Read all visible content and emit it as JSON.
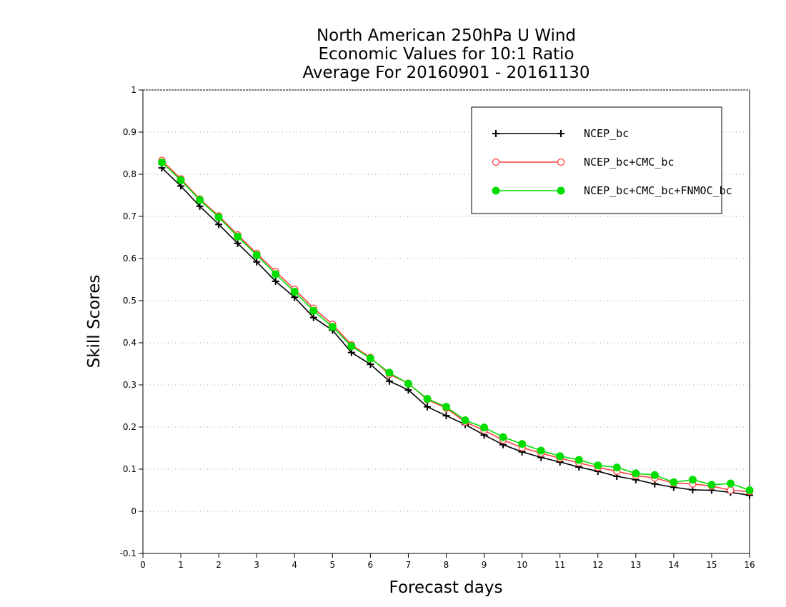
{
  "chart_data": {
    "type": "line",
    "title": [
      "North American 250hPa U Wind",
      "Economic Values for 10:1 Ratio",
      "Average For 20160901 - 20161130"
    ],
    "xlabel": "Forecast days",
    "ylabel": "Skill Scores",
    "xlim": [
      0,
      16
    ],
    "ylim": [
      -0.1,
      1
    ],
    "xticks": [
      "0",
      "1",
      "2",
      "3",
      "4",
      "5",
      "6",
      "7",
      "8",
      "9",
      "10",
      "11",
      "12",
      "13",
      "14",
      "15",
      "16"
    ],
    "yticks": [
      "-0.1",
      "0",
      "0.1",
      "0.2",
      "0.3",
      "0.4",
      "0.5",
      "0.6",
      "0.7",
      "0.8",
      "0.9",
      "1"
    ],
    "grid": true,
    "legend_position": "top-right",
    "x": [
      0.5,
      1,
      1.5,
      2,
      2.5,
      3,
      3.5,
      4,
      4.5,
      5,
      5.5,
      6,
      6.5,
      7,
      7.5,
      8,
      8.5,
      9,
      9.5,
      10,
      10.5,
      11,
      11.5,
      12,
      12.5,
      13,
      13.5,
      14,
      14.5,
      15,
      15.5,
      16
    ],
    "series": [
      {
        "name": "NCEP_bc",
        "color": "#000000",
        "marker": "plus",
        "values": [
          0.815,
          0.772,
          0.724,
          0.681,
          0.636,
          0.592,
          0.546,
          0.508,
          0.46,
          0.43,
          0.377,
          0.349,
          0.309,
          0.288,
          0.248,
          0.227,
          0.206,
          0.181,
          0.158,
          0.141,
          0.128,
          0.117,
          0.105,
          0.095,
          0.083,
          0.075,
          0.065,
          0.057,
          0.051,
          0.05,
          0.045,
          0.038
        ]
      },
      {
        "name": "NCEP_bc+CMC_bc",
        "color": "#ff4040",
        "marker": "open-circle",
        "values": [
          0.833,
          0.789,
          0.741,
          0.701,
          0.656,
          0.612,
          0.569,
          0.527,
          0.482,
          0.444,
          0.395,
          0.365,
          0.325,
          0.304,
          0.265,
          0.245,
          0.212,
          0.192,
          0.169,
          0.151,
          0.138,
          0.126,
          0.115,
          0.104,
          0.095,
          0.085,
          0.079,
          0.067,
          0.065,
          0.06,
          0.05,
          0.047
        ]
      },
      {
        "name": "NCEP_bc+CMC_bc+FNMOC_bc",
        "color": "#00dd00",
        "marker": "filled-circle",
        "values": [
          0.828,
          0.786,
          0.739,
          0.698,
          0.652,
          0.608,
          0.563,
          0.521,
          0.476,
          0.438,
          0.392,
          0.363,
          0.329,
          0.303,
          0.267,
          0.248,
          0.216,
          0.199,
          0.176,
          0.16,
          0.144,
          0.131,
          0.122,
          0.109,
          0.104,
          0.09,
          0.086,
          0.069,
          0.075,
          0.063,
          0.066,
          0.05
        ]
      }
    ]
  }
}
